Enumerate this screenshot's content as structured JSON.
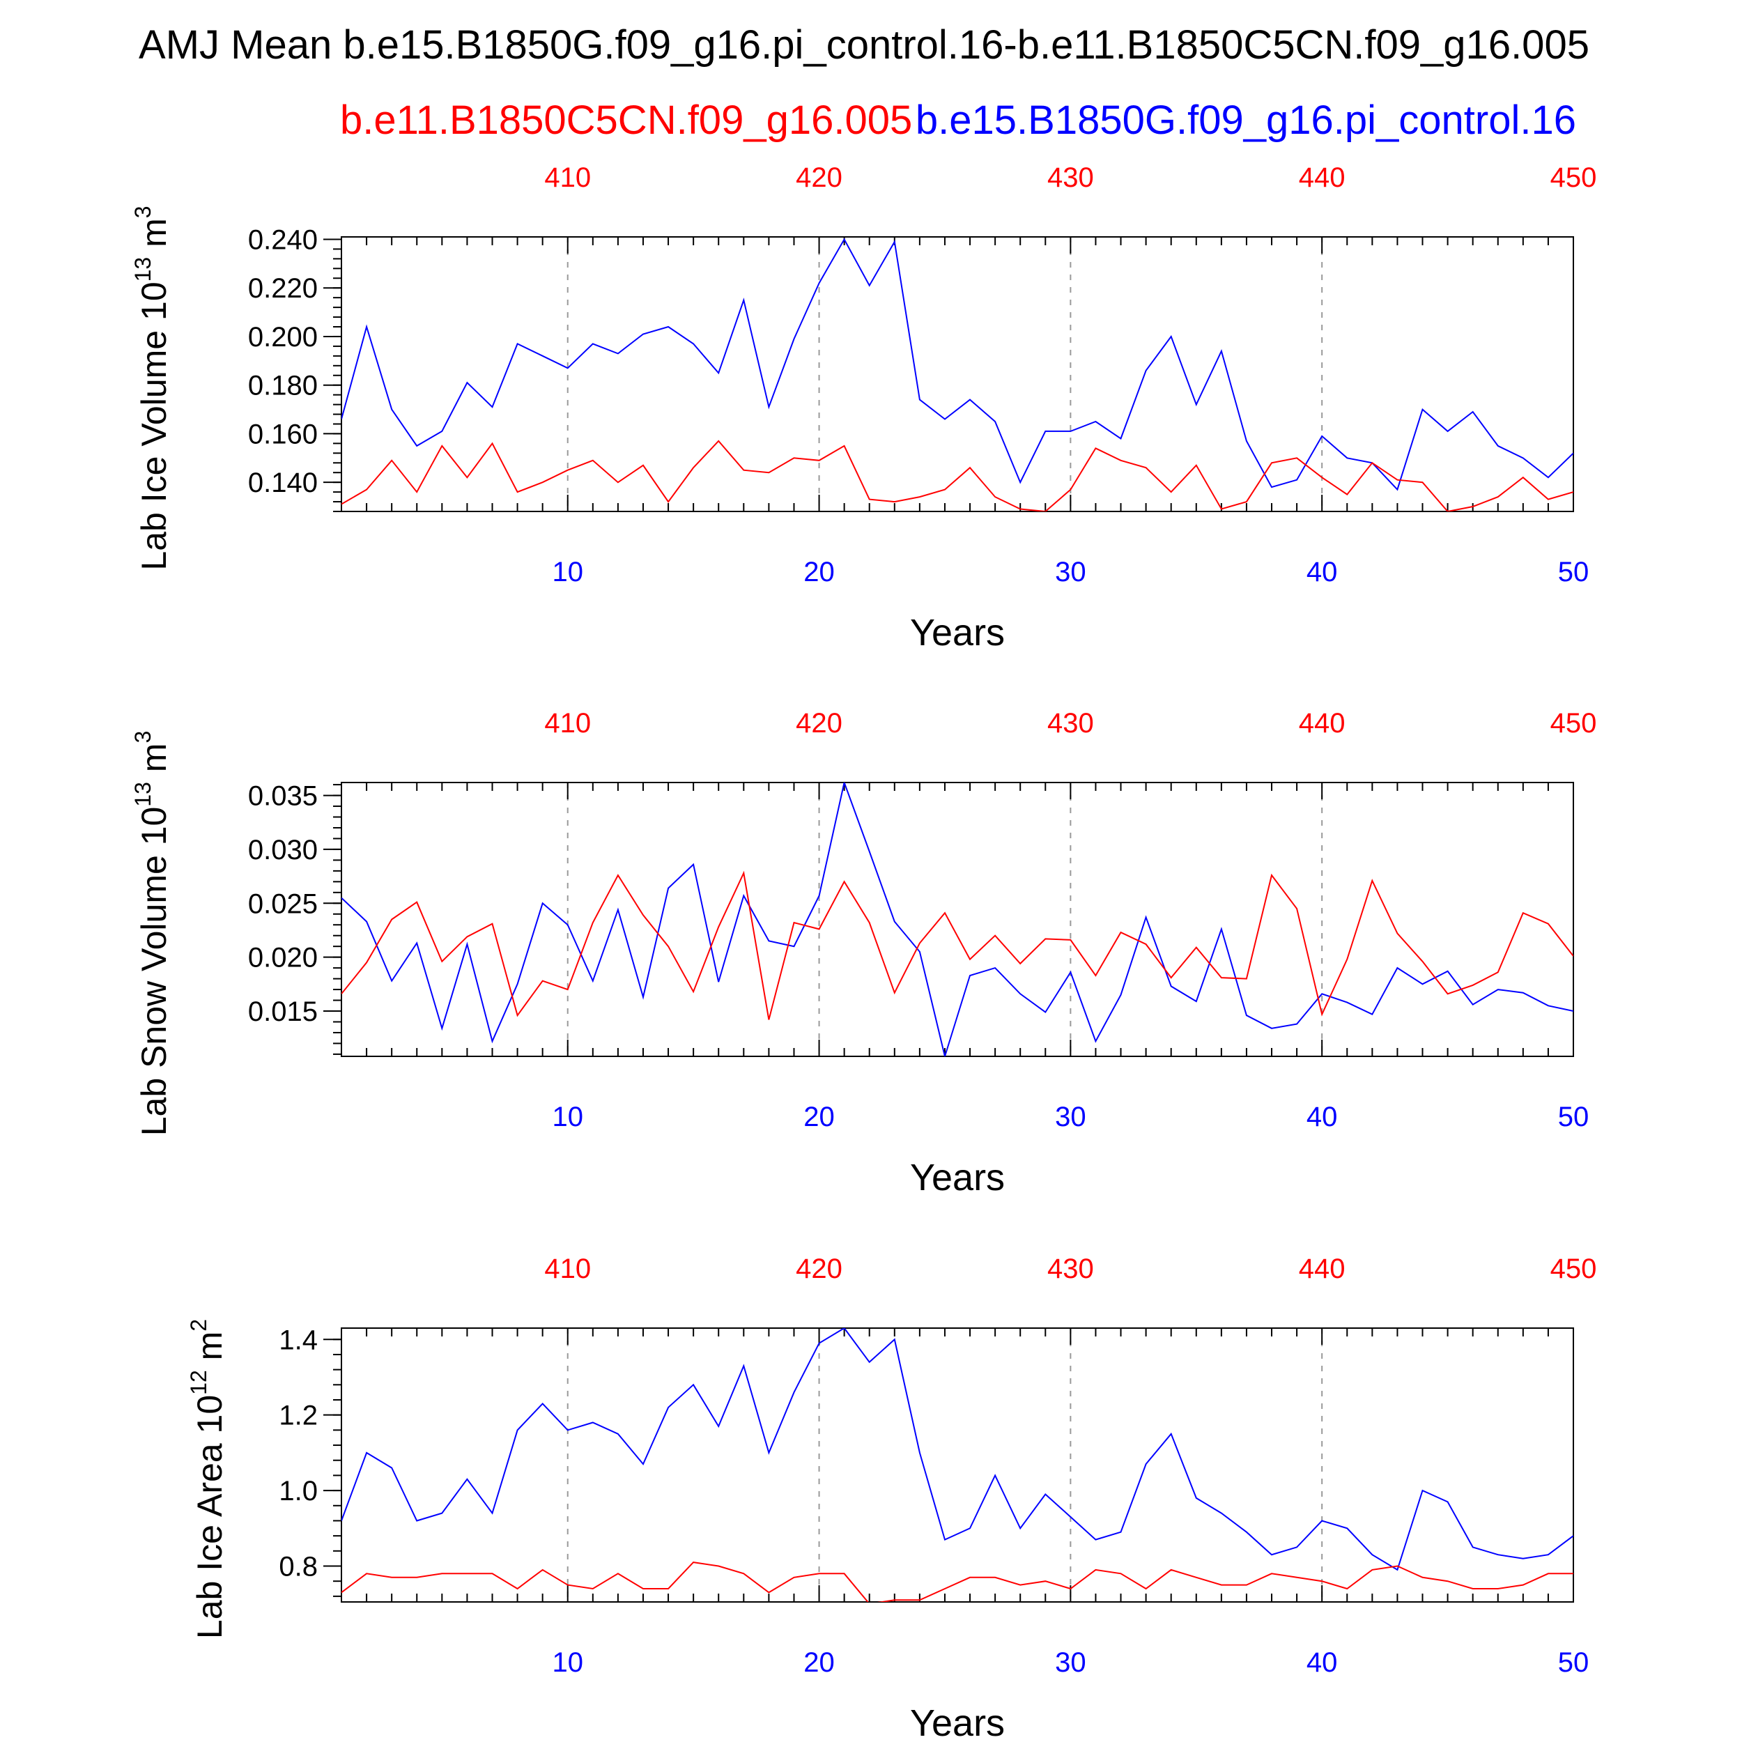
{
  "title": "AMJ Mean b.e15.B1850G.f09_g16.pi_control.16-b.e11.B1850C5CN.f09_g16.005",
  "subtitle_red": "b.e11.B1850C5CN.f09_g16.005",
  "subtitle_blue": "b.e15.B1850G.f09_g16.pi_control.16",
  "colors": {
    "case_red": "#ff0000",
    "case_blue": "#0000ff",
    "axis": "#000000",
    "grid": "#999999"
  },
  "chart_data": [
    {
      "type": "line",
      "ylabel_main": "Lab Ice Volume 10",
      "ylabel_exp": "13",
      "ylabel_unit": " m",
      "ylabel_unit_exp": "3",
      "xlabel": "Years",
      "xlim": [
        1,
        50
      ],
      "ylim": [
        0.128,
        0.241
      ],
      "yticks": [
        0.14,
        0.16,
        0.18,
        0.2,
        0.22,
        0.24
      ],
      "ytick_labels": [
        "0.140",
        "0.160",
        "0.180",
        "0.200",
        "0.220",
        "0.240"
      ],
      "yminor_step": 0.004,
      "xticks_bottom": [
        10,
        20,
        30,
        40,
        50
      ],
      "xticks_bottom_labels": [
        "10",
        "20",
        "30",
        "40",
        "50"
      ],
      "xticks_top_labels": [
        "410",
        "420",
        "430",
        "440",
        "450"
      ],
      "x": [
        1,
        2,
        3,
        4,
        5,
        6,
        7,
        8,
        9,
        10,
        11,
        12,
        13,
        14,
        15,
        16,
        17,
        18,
        19,
        20,
        21,
        22,
        23,
        24,
        25,
        26,
        27,
        28,
        29,
        30,
        31,
        32,
        33,
        34,
        35,
        36,
        37,
        38,
        39,
        40,
        41,
        42,
        43,
        44,
        45,
        46,
        47,
        48,
        49,
        50
      ],
      "series": [
        {
          "color": "blue",
          "values": [
            0.166,
            0.204,
            0.17,
            0.155,
            0.161,
            0.181,
            0.171,
            0.197,
            0.192,
            0.187,
            0.197,
            0.193,
            0.201,
            0.204,
            0.197,
            0.185,
            0.215,
            0.171,
            0.199,
            0.222,
            0.24,
            0.221,
            0.239,
            0.174,
            0.166,
            0.174,
            0.165,
            0.14,
            0.161,
            0.161,
            0.165,
            0.158,
            0.186,
            0.2,
            0.172,
            0.194,
            0.157,
            0.138,
            0.141,
            0.159,
            0.15,
            0.148,
            0.137,
            0.17,
            0.161,
            0.169,
            0.155,
            0.15,
            0.142,
            0.152
          ]
        },
        {
          "color": "red",
          "values": [
            0.131,
            0.137,
            0.149,
            0.136,
            0.155,
            0.142,
            0.156,
            0.136,
            0.14,
            0.145,
            0.149,
            0.14,
            0.147,
            0.132,
            0.146,
            0.157,
            0.145,
            0.144,
            0.15,
            0.149,
            0.155,
            0.133,
            0.132,
            0.134,
            0.137,
            0.146,
            0.134,
            0.129,
            0.128,
            0.137,
            0.154,
            0.149,
            0.146,
            0.136,
            0.147,
            0.129,
            0.132,
            0.148,
            0.15,
            0.142,
            0.135,
            0.148,
            0.141,
            0.14,
            0.128,
            0.13,
            0.134,
            0.142,
            0.133,
            0.136
          ]
        }
      ]
    },
    {
      "type": "line",
      "ylabel_main": "Lab Snow Volume 10",
      "ylabel_exp": "13",
      "ylabel_unit": " m",
      "ylabel_unit_exp": "3",
      "xlabel": "Years",
      "xlim": [
        1,
        50
      ],
      "ylim": [
        0.0108,
        0.0362
      ],
      "yticks": [
        0.015,
        0.02,
        0.025,
        0.03,
        0.035
      ],
      "ytick_labels": [
        "0.015",
        "0.020",
        "0.025",
        "0.030",
        "0.035"
      ],
      "yminor_step": 0.001,
      "xticks_bottom": [
        10,
        20,
        30,
        40,
        50
      ],
      "xticks_bottom_labels": [
        "10",
        "20",
        "30",
        "40",
        "50"
      ],
      "xticks_top_labels": [
        "410",
        "420",
        "430",
        "440",
        "450"
      ],
      "x": [
        1,
        2,
        3,
        4,
        5,
        6,
        7,
        8,
        9,
        10,
        11,
        12,
        13,
        14,
        15,
        16,
        17,
        18,
        19,
        20,
        21,
        22,
        23,
        24,
        25,
        26,
        27,
        28,
        29,
        30,
        31,
        32,
        33,
        34,
        35,
        36,
        37,
        38,
        39,
        40,
        41,
        42,
        43,
        44,
        45,
        46,
        47,
        48,
        49,
        50
      ],
      "series": [
        {
          "color": "blue",
          "values": [
            0.0255,
            0.0233,
            0.0178,
            0.0213,
            0.0134,
            0.0212,
            0.0122,
            0.0175,
            0.025,
            0.023,
            0.0178,
            0.0244,
            0.0163,
            0.0264,
            0.0286,
            0.0177,
            0.0257,
            0.0215,
            0.021,
            0.0257,
            0.0362,
            0.0298,
            0.0233,
            0.0205,
            0.0108,
            0.0183,
            0.019,
            0.0166,
            0.0149,
            0.0186,
            0.0122,
            0.0165,
            0.0237,
            0.0173,
            0.0159,
            0.0226,
            0.0146,
            0.0134,
            0.0138,
            0.0166,
            0.0158,
            0.0147,
            0.019,
            0.0175,
            0.0187,
            0.0156,
            0.017,
            0.0167,
            0.0155,
            0.015
          ]
        },
        {
          "color": "red",
          "values": [
            0.0166,
            0.0195,
            0.0235,
            0.0251,
            0.0196,
            0.0219,
            0.0231,
            0.0146,
            0.0178,
            0.017,
            0.0232,
            0.0276,
            0.0239,
            0.021,
            0.0168,
            0.0228,
            0.0278,
            0.0142,
            0.0232,
            0.0226,
            0.027,
            0.0232,
            0.0167,
            0.0213,
            0.0241,
            0.0198,
            0.022,
            0.0194,
            0.0217,
            0.0216,
            0.0183,
            0.0223,
            0.0212,
            0.0181,
            0.0209,
            0.0181,
            0.018,
            0.0276,
            0.0245,
            0.0147,
            0.0198,
            0.0271,
            0.0222,
            0.0196,
            0.0166,
            0.0174,
            0.0186,
            0.0241,
            0.0231,
            0.0201
          ]
        }
      ]
    },
    {
      "type": "line",
      "ylabel_main": "Lab Ice Area 10",
      "ylabel_exp": "12",
      "ylabel_unit": " m",
      "ylabel_unit_exp": "2",
      "xlabel": "Years",
      "xlim": [
        1,
        50
      ],
      "ylim": [
        0.705,
        1.43
      ],
      "yticks": [
        0.8,
        1.0,
        1.2,
        1.4
      ],
      "ytick_labels": [
        "0.8",
        "1.0",
        "1.2",
        "1.4"
      ],
      "yminor_step": 0.04,
      "xticks_bottom": [
        10,
        20,
        30,
        40,
        50
      ],
      "xticks_bottom_labels": [
        "10",
        "20",
        "30",
        "40",
        "50"
      ],
      "xticks_top_labels": [
        "410",
        "420",
        "430",
        "440",
        "450"
      ],
      "x": [
        1,
        2,
        3,
        4,
        5,
        6,
        7,
        8,
        9,
        10,
        11,
        12,
        13,
        14,
        15,
        16,
        17,
        18,
        19,
        20,
        21,
        22,
        23,
        24,
        25,
        26,
        27,
        28,
        29,
        30,
        31,
        32,
        33,
        34,
        35,
        36,
        37,
        38,
        39,
        40,
        41,
        42,
        43,
        44,
        45,
        46,
        47,
        48,
        49,
        50
      ],
      "series": [
        {
          "color": "blue",
          "values": [
            0.92,
            1.1,
            1.06,
            0.92,
            0.94,
            1.03,
            0.94,
            1.16,
            1.23,
            1.16,
            1.18,
            1.15,
            1.07,
            1.22,
            1.28,
            1.17,
            1.33,
            1.1,
            1.26,
            1.39,
            1.43,
            1.34,
            1.4,
            1.1,
            0.87,
            0.9,
            1.04,
            0.9,
            0.99,
            0.93,
            0.87,
            0.89,
            1.07,
            1.15,
            0.98,
            0.94,
            0.89,
            0.83,
            0.85,
            0.92,
            0.9,
            0.83,
            0.79,
            1.0,
            0.97,
            0.85,
            0.83,
            0.82,
            0.83,
            0.88
          ]
        },
        {
          "color": "red",
          "values": [
            0.73,
            0.78,
            0.77,
            0.77,
            0.78,
            0.78,
            0.78,
            0.74,
            0.79,
            0.75,
            0.74,
            0.78,
            0.74,
            0.74,
            0.81,
            0.8,
            0.78,
            0.73,
            0.77,
            0.78,
            0.78,
            0.7,
            0.71,
            0.71,
            0.74,
            0.77,
            0.77,
            0.75,
            0.76,
            0.74,
            0.79,
            0.78,
            0.74,
            0.79,
            0.77,
            0.75,
            0.75,
            0.78,
            0.77,
            0.76,
            0.74,
            0.79,
            0.8,
            0.77,
            0.76,
            0.74,
            0.74,
            0.75,
            0.78,
            0.78
          ]
        }
      ]
    }
  ]
}
